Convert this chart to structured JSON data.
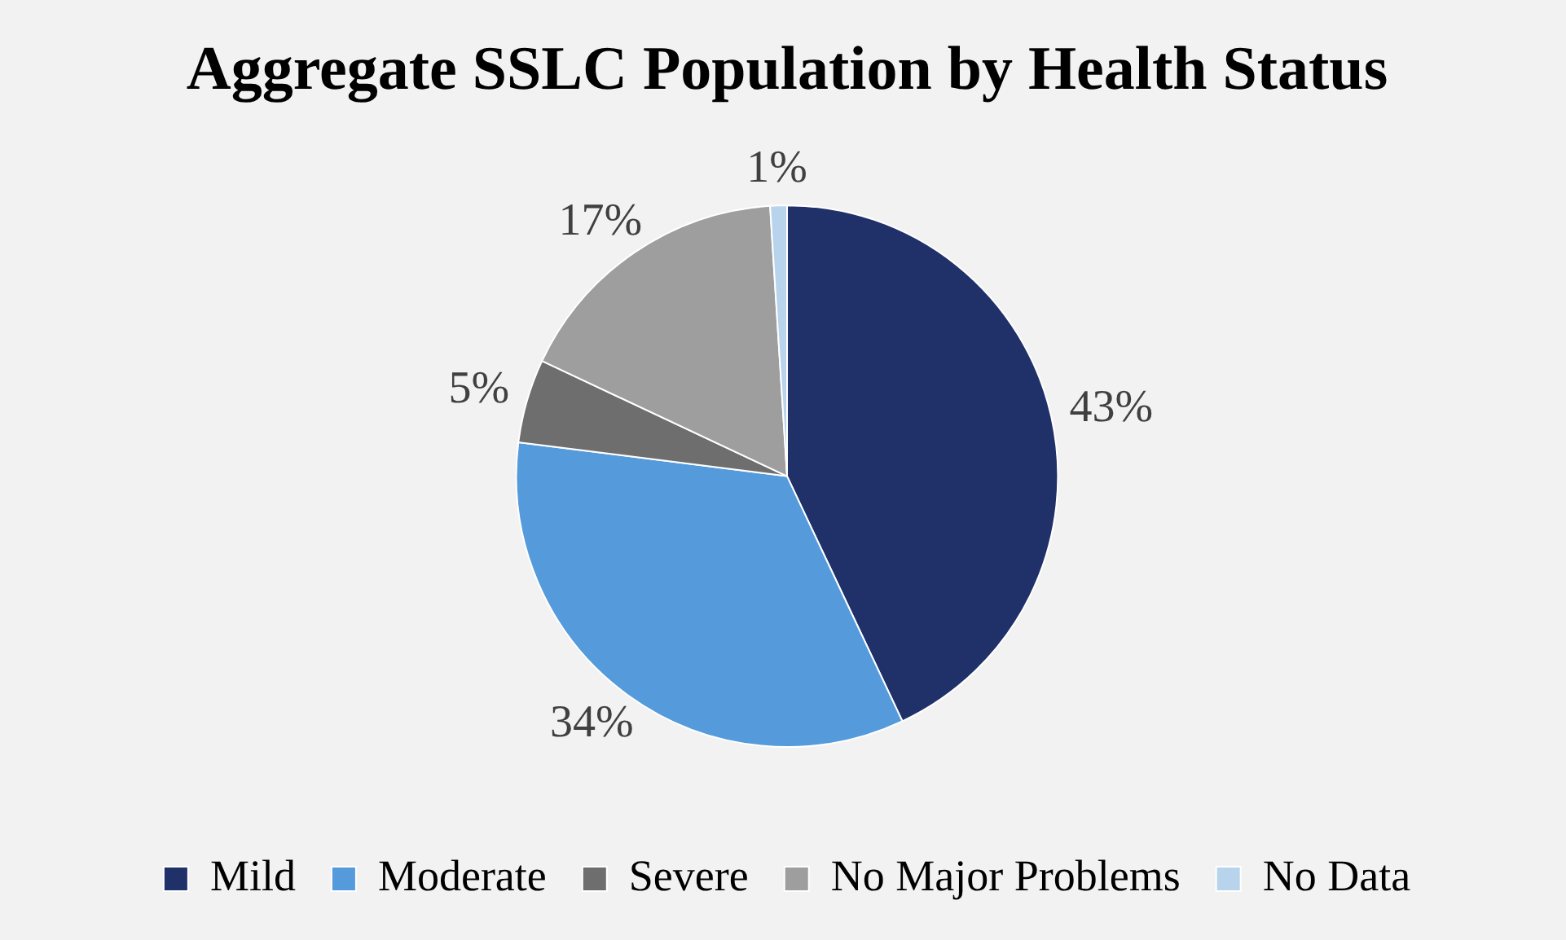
{
  "chart_data": {
    "type": "pie",
    "title": "Aggregate SSLC Population by Health Status",
    "categories": [
      "Mild",
      "Moderate",
      "Severe",
      "No Major Problems",
      "No Data"
    ],
    "values": [
      43,
      34,
      5,
      17,
      1
    ],
    "colors": [
      "#203069",
      "#559bdc",
      "#6e6e6e",
      "#9e9e9e",
      "#b8d3ec"
    ],
    "value_labels": [
      "43%",
      "34%",
      "5%",
      "17%",
      "1%"
    ],
    "legend": "bottom"
  }
}
